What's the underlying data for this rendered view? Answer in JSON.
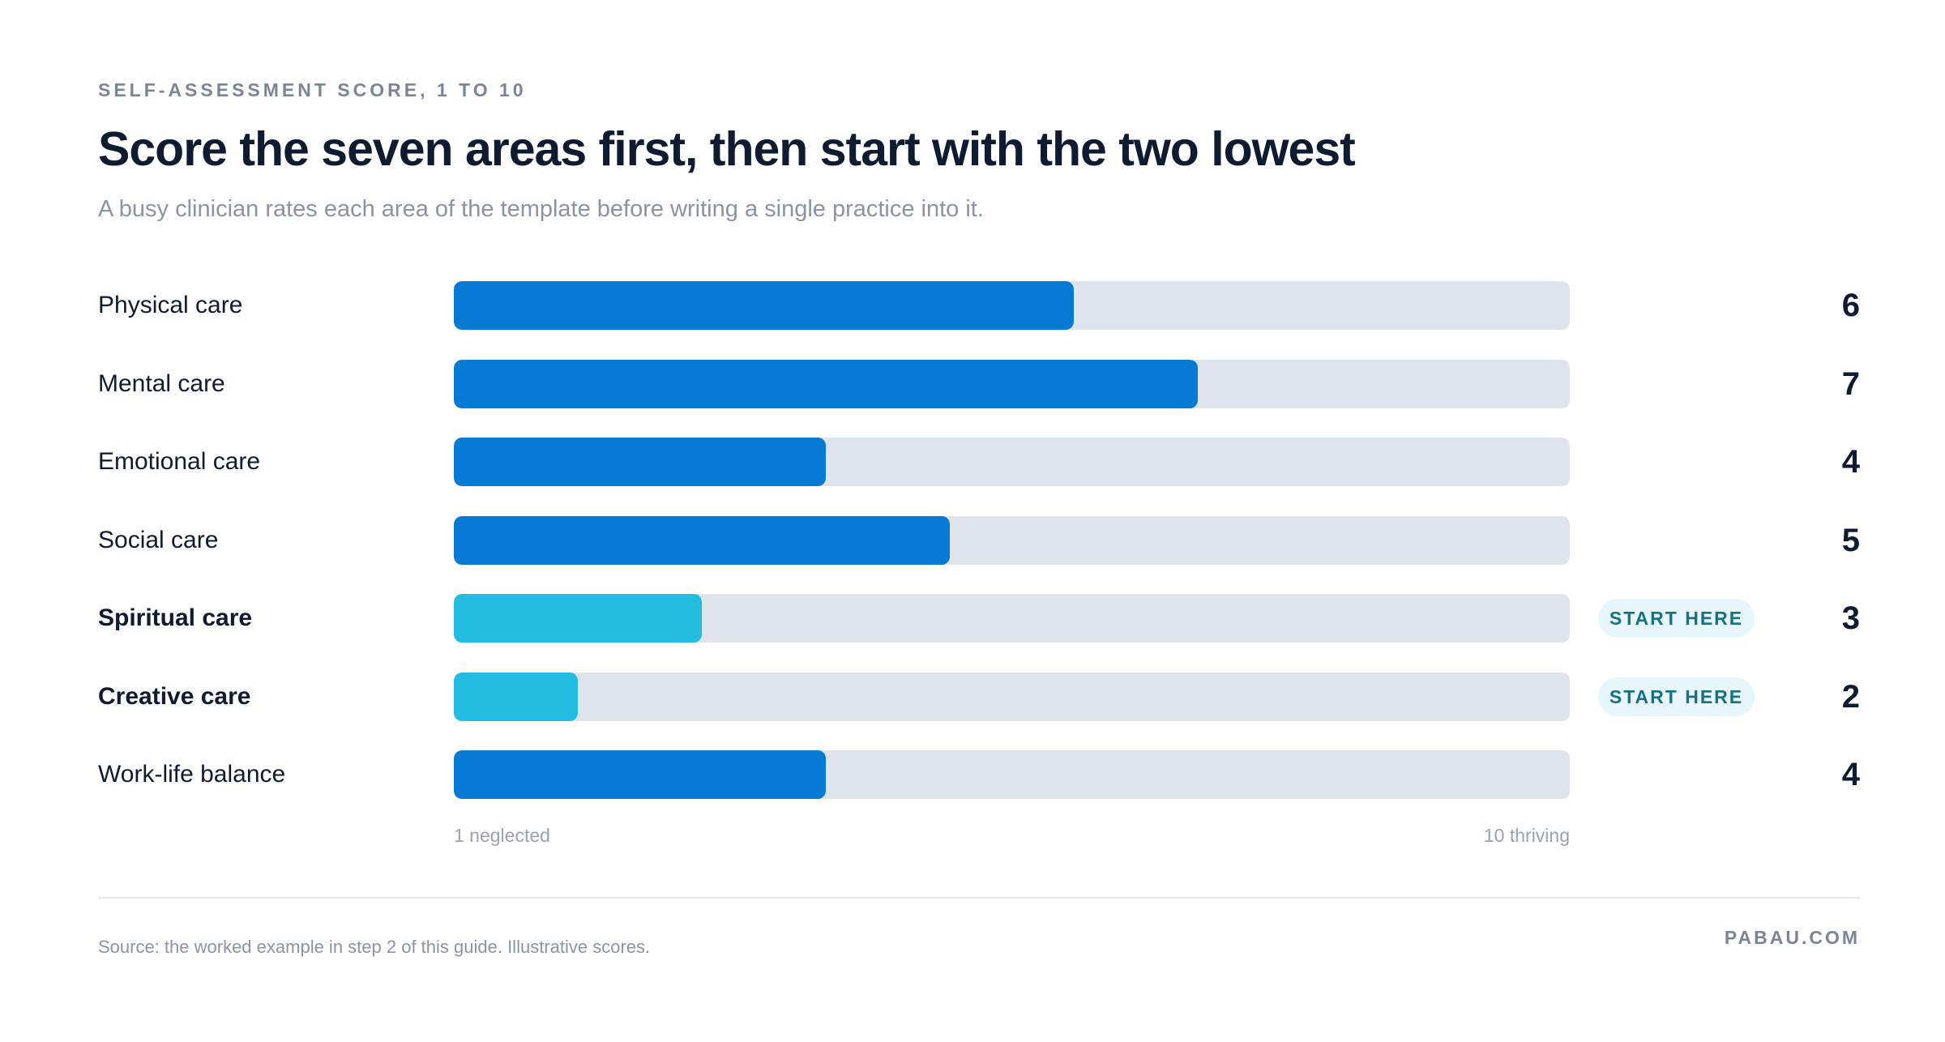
{
  "header": {
    "eyebrow": "SELF-ASSESSMENT SCORE, 1 TO 10",
    "title": "Score the seven areas first, then start with the two lowest",
    "subtitle": "A busy clinician rates each area of the template before writing a single practice into it."
  },
  "chart_data": {
    "type": "bar",
    "orientation": "horizontal",
    "categories": [
      "Physical care",
      "Mental care",
      "Emotional care",
      "Social care",
      "Spiritual care",
      "Creative care",
      "Work-life balance"
    ],
    "values": [
      6,
      7,
      4,
      5,
      3,
      2,
      4
    ],
    "highlighted": [
      false,
      false,
      false,
      false,
      true,
      true,
      false
    ],
    "badge_label": "START HERE",
    "xlim": [
      1,
      10
    ],
    "axis_min_label": "1 neglected",
    "axis_max_label": "10 thriving",
    "colors": {
      "bar": "#077ad4",
      "highlight": "#24bde2",
      "track": "#dfe3ec"
    }
  },
  "footer": {
    "source": "Source: the worked example in step 2 of this guide. Illustrative scores.",
    "brand": "PABAU.COM"
  }
}
